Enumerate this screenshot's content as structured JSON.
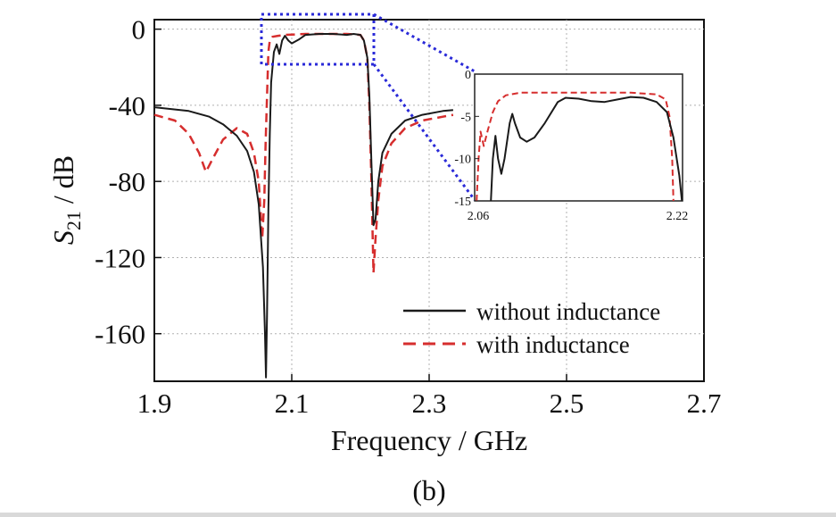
{
  "chart_data": [
    {
      "type": "line",
      "panel_label": "(b)",
      "xlabel": "Frequency / GHz",
      "ylabel_main": "S",
      "ylabel_sub": "21",
      "ylabel_rest": " / dB",
      "xlim": [
        1.9,
        2.7
      ],
      "ylim": [
        -185,
        5
      ],
      "xticks": [
        1.9,
        2.1,
        2.3,
        2.5,
        2.7
      ],
      "xtick_labels": [
        "1.9",
        "2.1",
        "2.3",
        "2.5",
        "2.7"
      ],
      "yticks": [
        0,
        -40,
        -80,
        -120,
        -160
      ],
      "ytick_labels": [
        "0",
        "-40",
        "-80",
        "-120",
        "-160"
      ],
      "grid": true,
      "legend_position": "bottom-right",
      "series": [
        {
          "name": "without inductance",
          "color": "#1a1a1a",
          "dash": "solid",
          "points": [
            [
              1.9,
              -41
            ],
            [
              1.95,
              -43
            ],
            [
              1.98,
              -46
            ],
            [
              2.0,
              -50
            ],
            [
              2.02,
              -56
            ],
            [
              2.035,
              -64
            ],
            [
              2.045,
              -75
            ],
            [
              2.052,
              -92
            ],
            [
              2.058,
              -125
            ],
            [
              2.061,
              -160
            ],
            [
              2.0625,
              -183
            ],
            [
              2.064,
              -150
            ],
            [
              2.066,
              -95
            ],
            [
              2.068,
              -55
            ],
            [
              2.07,
              -28
            ],
            [
              2.074,
              -12
            ],
            [
              2.078,
              -8
            ],
            [
              2.082,
              -13
            ],
            [
              2.086,
              -6
            ],
            [
              2.09,
              -3.5
            ],
            [
              2.095,
              -6
            ],
            [
              2.1,
              -7.5
            ],
            [
              2.11,
              -5.5
            ],
            [
              2.12,
              -3
            ],
            [
              2.14,
              -2.5
            ],
            [
              2.16,
              -2.5
            ],
            [
              2.18,
              -3
            ],
            [
              2.19,
              -2.5
            ],
            [
              2.2,
              -3
            ],
            [
              2.205,
              -6
            ],
            [
              2.21,
              -15
            ],
            [
              2.213,
              -35
            ],
            [
              2.216,
              -70
            ],
            [
              2.219,
              -103
            ],
            [
              2.222,
              -100
            ],
            [
              2.226,
              -80
            ],
            [
              2.232,
              -65
            ],
            [
              2.245,
              -55
            ],
            [
              2.265,
              -48
            ],
            [
              2.29,
              -45
            ],
            [
              2.32,
              -43
            ],
            [
              2.335,
              -42.5
            ]
          ]
        },
        {
          "name": "with inductance",
          "color": "#d62e2e",
          "dash": "dashed",
          "points": [
            [
              1.9,
              -45
            ],
            [
              1.93,
              -48
            ],
            [
              1.95,
              -55
            ],
            [
              1.965,
              -65
            ],
            [
              1.975,
              -75
            ],
            [
              1.985,
              -68
            ],
            [
              2.0,
              -58
            ],
            [
              2.02,
              -52
            ],
            [
              2.035,
              -55
            ],
            [
              2.045,
              -65
            ],
            [
              2.052,
              -80
            ],
            [
              2.057,
              -110
            ],
            [
              2.06,
              -90
            ],
            [
              2.062,
              -60
            ],
            [
              2.064,
              -35
            ],
            [
              2.066,
              -12
            ],
            [
              2.068,
              -6
            ],
            [
              2.072,
              -4
            ],
            [
              2.08,
              -3.5
            ],
            [
              2.09,
              -3
            ],
            [
              2.12,
              -2.5
            ],
            [
              2.15,
              -2.5
            ],
            [
              2.18,
              -2.5
            ],
            [
              2.2,
              -3
            ],
            [
              2.205,
              -6
            ],
            [
              2.21,
              -15
            ],
            [
              2.213,
              -40
            ],
            [
              2.216,
              -80
            ],
            [
              2.219,
              -128
            ],
            [
              2.222,
              -110
            ],
            [
              2.226,
              -90
            ],
            [
              2.232,
              -72
            ],
            [
              2.245,
              -60
            ],
            [
              2.265,
              -52
            ],
            [
              2.29,
              -48
            ],
            [
              2.32,
              -46
            ],
            [
              2.335,
              -45
            ]
          ]
        }
      ]
    },
    {
      "type": "line",
      "role": "inset-zoom",
      "xlim": [
        2.06,
        2.22
      ],
      "ylim": [
        -15,
        0
      ],
      "xtick_labels": [
        "2.06",
        "2.22"
      ],
      "yticks": [
        0,
        -5,
        -10,
        -15
      ],
      "ytick_labels": [
        "0",
        "-5",
        "-10",
        "-15"
      ],
      "series": [
        {
          "name": "without inductance",
          "color": "#1a1a1a",
          "dash": "solid",
          "points": [
            [
              2.0725,
              -15
            ],
            [
              2.074,
              -10
            ],
            [
              2.076,
              -7.3
            ],
            [
              2.078,
              -10
            ],
            [
              2.0805,
              -11.8
            ],
            [
              2.083,
              -10
            ],
            [
              2.087,
              -5.8
            ],
            [
              2.089,
              -4.7
            ],
            [
              2.091,
              -5.8
            ],
            [
              2.095,
              -7.5
            ],
            [
              2.1,
              -8
            ],
            [
              2.106,
              -7.5
            ],
            [
              2.114,
              -5.8
            ],
            [
              2.124,
              -3.3
            ],
            [
              2.13,
              -2.8
            ],
            [
              2.14,
              -2.9
            ],
            [
              2.15,
              -3.2
            ],
            [
              2.16,
              -3.3
            ],
            [
              2.17,
              -3.0
            ],
            [
              2.18,
              -2.7
            ],
            [
              2.19,
              -2.8
            ],
            [
              2.2,
              -3.3
            ],
            [
              2.208,
              -4.5
            ],
            [
              2.213,
              -7.5
            ],
            [
              2.2175,
              -12
            ],
            [
              2.2195,
              -15
            ]
          ]
        },
        {
          "name": "with inductance",
          "color": "#d62e2e",
          "dash": "dashed",
          "points": [
            [
              2.0615,
              -15
            ],
            [
              2.063,
              -10
            ],
            [
              2.0645,
              -6.8
            ],
            [
              2.067,
              -8.5
            ],
            [
              2.07,
              -6.7
            ],
            [
              2.074,
              -4.5
            ],
            [
              2.078,
              -3.2
            ],
            [
              2.084,
              -2.5
            ],
            [
              2.095,
              -2.2
            ],
            [
              2.12,
              -2.2
            ],
            [
              2.15,
              -2.2
            ],
            [
              2.18,
              -2.2
            ],
            [
              2.2,
              -2.4
            ],
            [
              2.207,
              -3
            ],
            [
              2.21,
              -5
            ],
            [
              2.212,
              -10
            ],
            [
              2.213,
              -15
            ]
          ]
        }
      ]
    }
  ]
}
